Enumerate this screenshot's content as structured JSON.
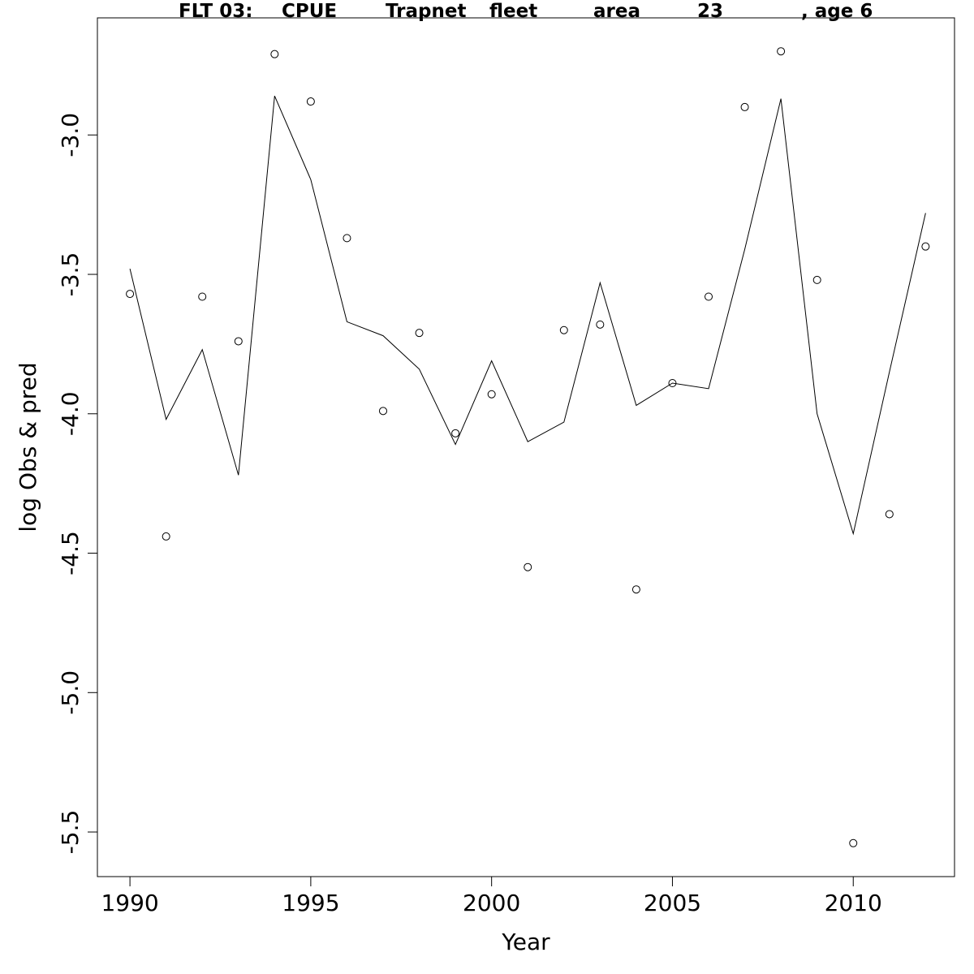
{
  "chart_data": {
    "type": "line",
    "title_parts": [
      "FLT 03:",
      "CPUE",
      "Trapnet",
      "fleet",
      "area",
      "23",
      ", age 6"
    ],
    "xlabel": "Year",
    "ylabel": "log Obs & pred",
    "xlim": [
      1989.1,
      2012.8
    ],
    "ylim": [
      -5.66,
      -2.58
    ],
    "x_ticks": [
      1990,
      1995,
      2000,
      2005,
      2010
    ],
    "y_ticks": [
      -3.0,
      -3.5,
      -4.0,
      -4.5,
      -5.0,
      -5.5
    ],
    "y_tick_labels": [
      "-3.0",
      "-3.5",
      "-4.0",
      "-4.5",
      "-5.0",
      "-5.5"
    ],
    "grid": false,
    "series": [
      {
        "kind": "line",
        "x": [
          1990,
          1991,
          1992,
          1993,
          1994,
          1995,
          1996,
          1997,
          1998,
          1999,
          2000,
          2001,
          2002,
          2003,
          2004,
          2005,
          2006,
          2007,
          2008,
          2009,
          2010,
          2011,
          2012
        ],
        "y": [
          -3.48,
          -4.02,
          -3.77,
          -4.22,
          -2.86,
          -3.16,
          -3.67,
          -3.72,
          -3.84,
          -4.11,
          -3.81,
          -4.1,
          -4.03,
          -3.53,
          -3.97,
          -3.89,
          -3.91,
          -3.41,
          -2.87,
          -4.0,
          -4.43,
          -3.85,
          -3.28
        ]
      },
      {
        "kind": "points",
        "x": [
          1990,
          1991,
          1992,
          1993,
          1994,
          1995,
          1996,
          1997,
          1998,
          1999,
          2000,
          2001,
          2002,
          2003,
          2004,
          2005,
          2006,
          2007,
          2008,
          2009,
          2010,
          2011,
          2012
        ],
        "y": [
          -3.57,
          -4.44,
          -3.58,
          -3.74,
          -2.71,
          -2.88,
          -3.37,
          -3.99,
          -3.71,
          -4.07,
          -3.93,
          -4.55,
          -3.7,
          -3.68,
          -4.63,
          -3.89,
          -3.58,
          -2.9,
          -2.7,
          -3.52,
          -5.54,
          -4.36,
          -3.4
        ]
      }
    ],
    "colors": {
      "line": "#000000",
      "points": "#000000",
      "background": "#ffffff"
    }
  }
}
